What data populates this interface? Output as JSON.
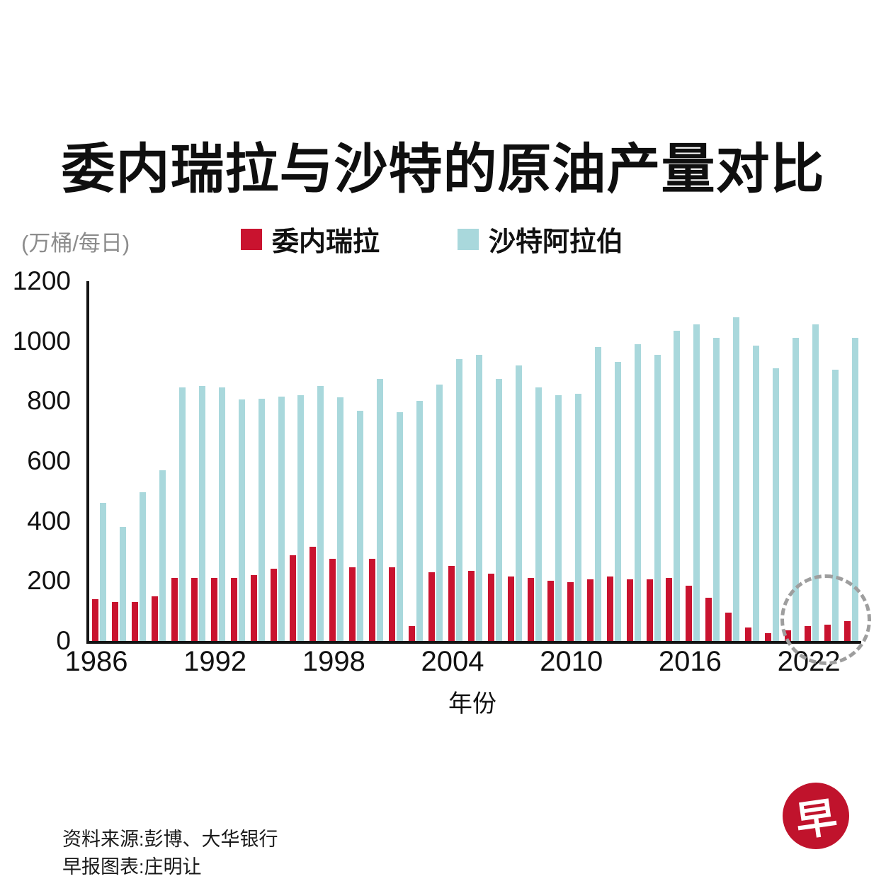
{
  "title": "委内瑞拉与沙特的原油产量对比",
  "unit_label": "(万桶/每日)",
  "legend": [
    {
      "label": "委内瑞拉",
      "color": "#c9132f"
    },
    {
      "label": "沙特阿拉伯",
      "color": "#a9d8dc"
    }
  ],
  "chart_data": {
    "type": "bar",
    "x": [
      1986,
      1987,
      1988,
      1989,
      1990,
      1991,
      1992,
      1993,
      1994,
      1995,
      1996,
      1997,
      1998,
      1999,
      2000,
      2001,
      2002,
      2003,
      2004,
      2005,
      2006,
      2007,
      2008,
      2009,
      2010,
      2011,
      2012,
      2013,
      2014,
      2015,
      2016,
      2017,
      2018,
      2019,
      2020,
      2021,
      2022,
      2023,
      2024
    ],
    "series": [
      {
        "name": "委内瑞拉",
        "color": "#c9132f",
        "values": [
          140,
          130,
          130,
          150,
          210,
          210,
          210,
          210,
          220,
          240,
          285,
          315,
          275,
          245,
          275,
          245,
          50,
          230,
          250,
          235,
          225,
          215,
          210,
          200,
          195,
          205,
          215,
          205,
          205,
          210,
          185,
          145,
          95,
          45,
          25,
          35,
          50,
          55,
          65
        ]
      },
      {
        "name": "沙特阿拉伯",
        "color": "#a9d8dc",
        "values": [
          460,
          380,
          495,
          570,
          845,
          850,
          845,
          805,
          808,
          815,
          820,
          850,
          812,
          768,
          875,
          762,
          800,
          855,
          940,
          955,
          875,
          920,
          845,
          820,
          825,
          980,
          930,
          990,
          955,
          1035,
          1055,
          1010,
          1080,
          985,
          910,
          1010,
          1055,
          905,
          1010
        ]
      }
    ],
    "xlabel": "年份",
    "ylabel": "(万桶/每日)",
    "ylim": [
      0,
      1200
    ],
    "yticks": [
      0,
      200,
      400,
      600,
      800,
      1000,
      1200
    ],
    "xticks": [
      1986,
      1992,
      1998,
      2004,
      2010,
      2016,
      2022
    ],
    "grid": false,
    "legend_position": "top",
    "annotation": "dashed-circle-highlight-2022-2024-venezuela-bars"
  },
  "footer": {
    "source_line": "资料来源:彭博、大华银行",
    "credit_line": "早报图表:庄明让"
  },
  "logo_char": "早"
}
